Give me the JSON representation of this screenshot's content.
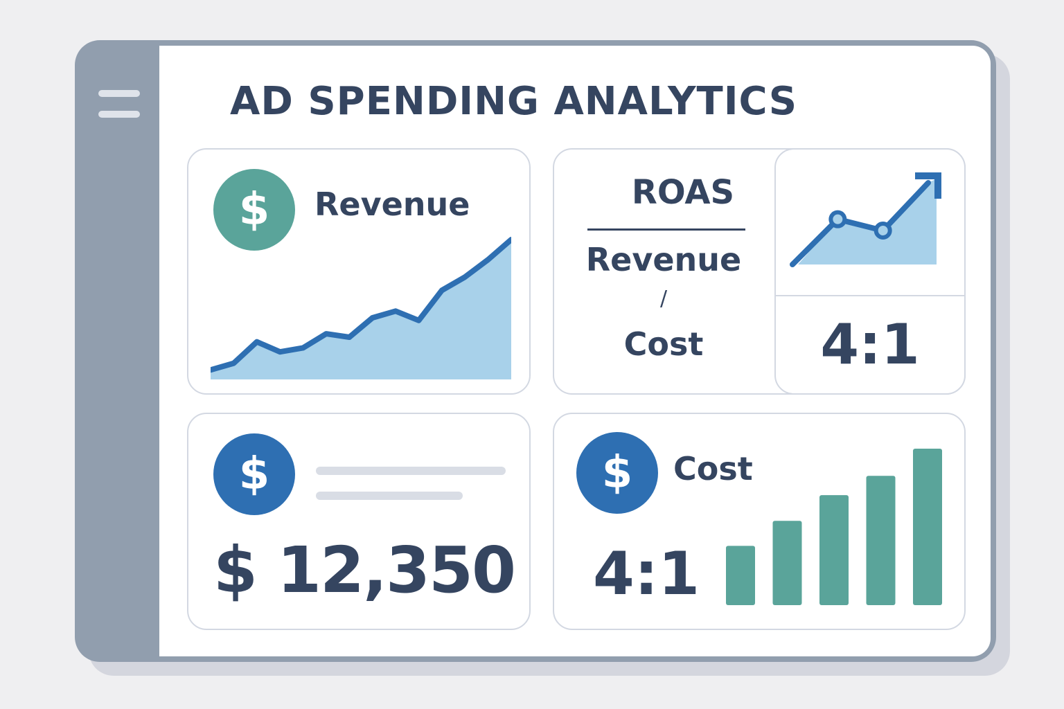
{
  "window": {
    "title": "AD SPENDING ANALYTICS",
    "sidebar": {
      "menu_icon": "hamburger-menu-icon"
    }
  },
  "cards": {
    "revenue": {
      "label": "Revenue",
      "icon": "dollar-coin-icon",
      "icon_glyph": "$"
    },
    "roas": {
      "title": "ROAS",
      "numerator": "Revenue",
      "divider": "/",
      "denominator": "Cost",
      "ratio": "4:1",
      "trend_icon": "trend-up-arrow-icon"
    },
    "total": {
      "icon": "dollar-coin-icon",
      "icon_glyph": "$",
      "value": "$ 12,350"
    },
    "cost": {
      "label": "Cost",
      "icon": "dollar-coin-icon",
      "icon_glyph": "$",
      "ratio": "4:1"
    }
  },
  "colors": {
    "title_text": "#354560",
    "line_blue": "#2e6fb2",
    "area_fill": "#a8d1ea",
    "teal": "#5aa49a",
    "coin_blue": "#2e6fb2",
    "sidebar": "#919eae",
    "card_border": "#d3d8e2"
  },
  "chart_data": [
    {
      "type": "area",
      "x": [
        1,
        2,
        3,
        4,
        5,
        6,
        7,
        8,
        9,
        10,
        11,
        12,
        13,
        14
      ],
      "y": [
        8,
        18,
        50,
        35,
        41,
        62,
        57,
        86,
        96,
        82,
        127,
        147,
        173,
        203
      ]
    },
    {
      "type": "line",
      "x": [
        1,
        2,
        3,
        4
      ],
      "y": [
        0,
        72,
        54,
        130
      ]
    },
    {
      "type": "bar",
      "categories": [
        "1",
        "2",
        "3",
        "4",
        "5"
      ],
      "values": [
        83,
        118,
        154,
        181,
        219
      ]
    }
  ]
}
